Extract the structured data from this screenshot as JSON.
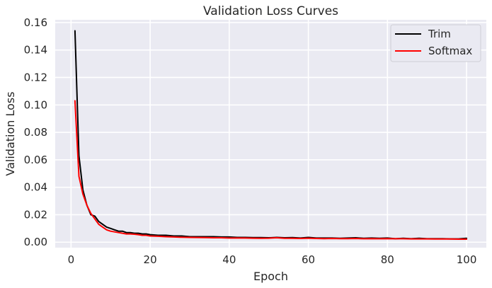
{
  "chart_data": {
    "type": "line",
    "title": "Validation Loss Curves",
    "xlabel": "Epoch",
    "ylabel": "Validation Loss",
    "xlim": [
      -4,
      105
    ],
    "ylim": [
      -0.004,
      0.162
    ],
    "xticks": [
      0,
      20,
      40,
      60,
      80,
      100
    ],
    "yticks": [
      0.0,
      0.02,
      0.04,
      0.06,
      0.08,
      0.1,
      0.12,
      0.14,
      0.16
    ],
    "grid": true,
    "legend_position": "top-right",
    "series": [
      {
        "name": "Trim",
        "color": "#000000",
        "x": [
          1,
          2,
          3,
          4,
          5,
          6,
          7,
          8,
          9,
          10,
          11,
          12,
          13,
          14,
          15,
          16,
          17,
          18,
          19,
          20,
          22,
          24,
          26,
          28,
          30,
          32,
          34,
          36,
          38,
          40,
          42,
          44,
          46,
          48,
          50,
          52,
          54,
          56,
          58,
          60,
          62,
          64,
          66,
          68,
          70,
          72,
          74,
          76,
          78,
          80,
          82,
          84,
          86,
          88,
          90,
          92,
          94,
          96,
          98,
          100
        ],
        "y": [
          0.154,
          0.063,
          0.038,
          0.027,
          0.02,
          0.019,
          0.015,
          0.013,
          0.011,
          0.01,
          0.009,
          0.008,
          0.008,
          0.007,
          0.007,
          0.0065,
          0.0065,
          0.006,
          0.006,
          0.0055,
          0.005,
          0.005,
          0.0045,
          0.0045,
          0.004,
          0.004,
          0.004,
          0.004,
          0.0038,
          0.0038,
          0.0035,
          0.0035,
          0.0033,
          0.0033,
          0.0032,
          0.0035,
          0.0032,
          0.0033,
          0.003,
          0.0035,
          0.003,
          0.003,
          0.003,
          0.0028,
          0.003,
          0.0032,
          0.0028,
          0.003,
          0.0028,
          0.003,
          0.0025,
          0.0028,
          0.0025,
          0.0028,
          0.0025,
          0.0025,
          0.0025,
          0.0024,
          0.0024,
          0.0028
        ]
      },
      {
        "name": "Softmax",
        "color": "#ff0000",
        "x": [
          1,
          2,
          3,
          4,
          5,
          6,
          7,
          8,
          9,
          10,
          11,
          12,
          13,
          14,
          15,
          16,
          17,
          18,
          19,
          20,
          22,
          24,
          26,
          28,
          30,
          32,
          34,
          36,
          38,
          40,
          42,
          44,
          46,
          48,
          50,
          52,
          54,
          56,
          58,
          60,
          62,
          64,
          66,
          68,
          70,
          72,
          74,
          76,
          78,
          80,
          82,
          84,
          86,
          88,
          90,
          92,
          94,
          96,
          98,
          100
        ],
        "y": [
          0.103,
          0.048,
          0.035,
          0.027,
          0.021,
          0.017,
          0.013,
          0.011,
          0.009,
          0.008,
          0.0075,
          0.007,
          0.0065,
          0.006,
          0.006,
          0.0058,
          0.0055,
          0.005,
          0.005,
          0.0045,
          0.0043,
          0.004,
          0.0038,
          0.0036,
          0.0035,
          0.0034,
          0.0033,
          0.0032,
          0.0032,
          0.003,
          0.003,
          0.003,
          0.0029,
          0.0028,
          0.0029,
          0.0032,
          0.0028,
          0.0028,
          0.0027,
          0.0029,
          0.0027,
          0.0026,
          0.0027,
          0.0026,
          0.0026,
          0.0027,
          0.0025,
          0.0026,
          0.0025,
          0.0026,
          0.0025,
          0.0025,
          0.0024,
          0.0024,
          0.0024,
          0.0023,
          0.0023,
          0.0023,
          0.0022,
          0.0022
        ]
      }
    ]
  }
}
